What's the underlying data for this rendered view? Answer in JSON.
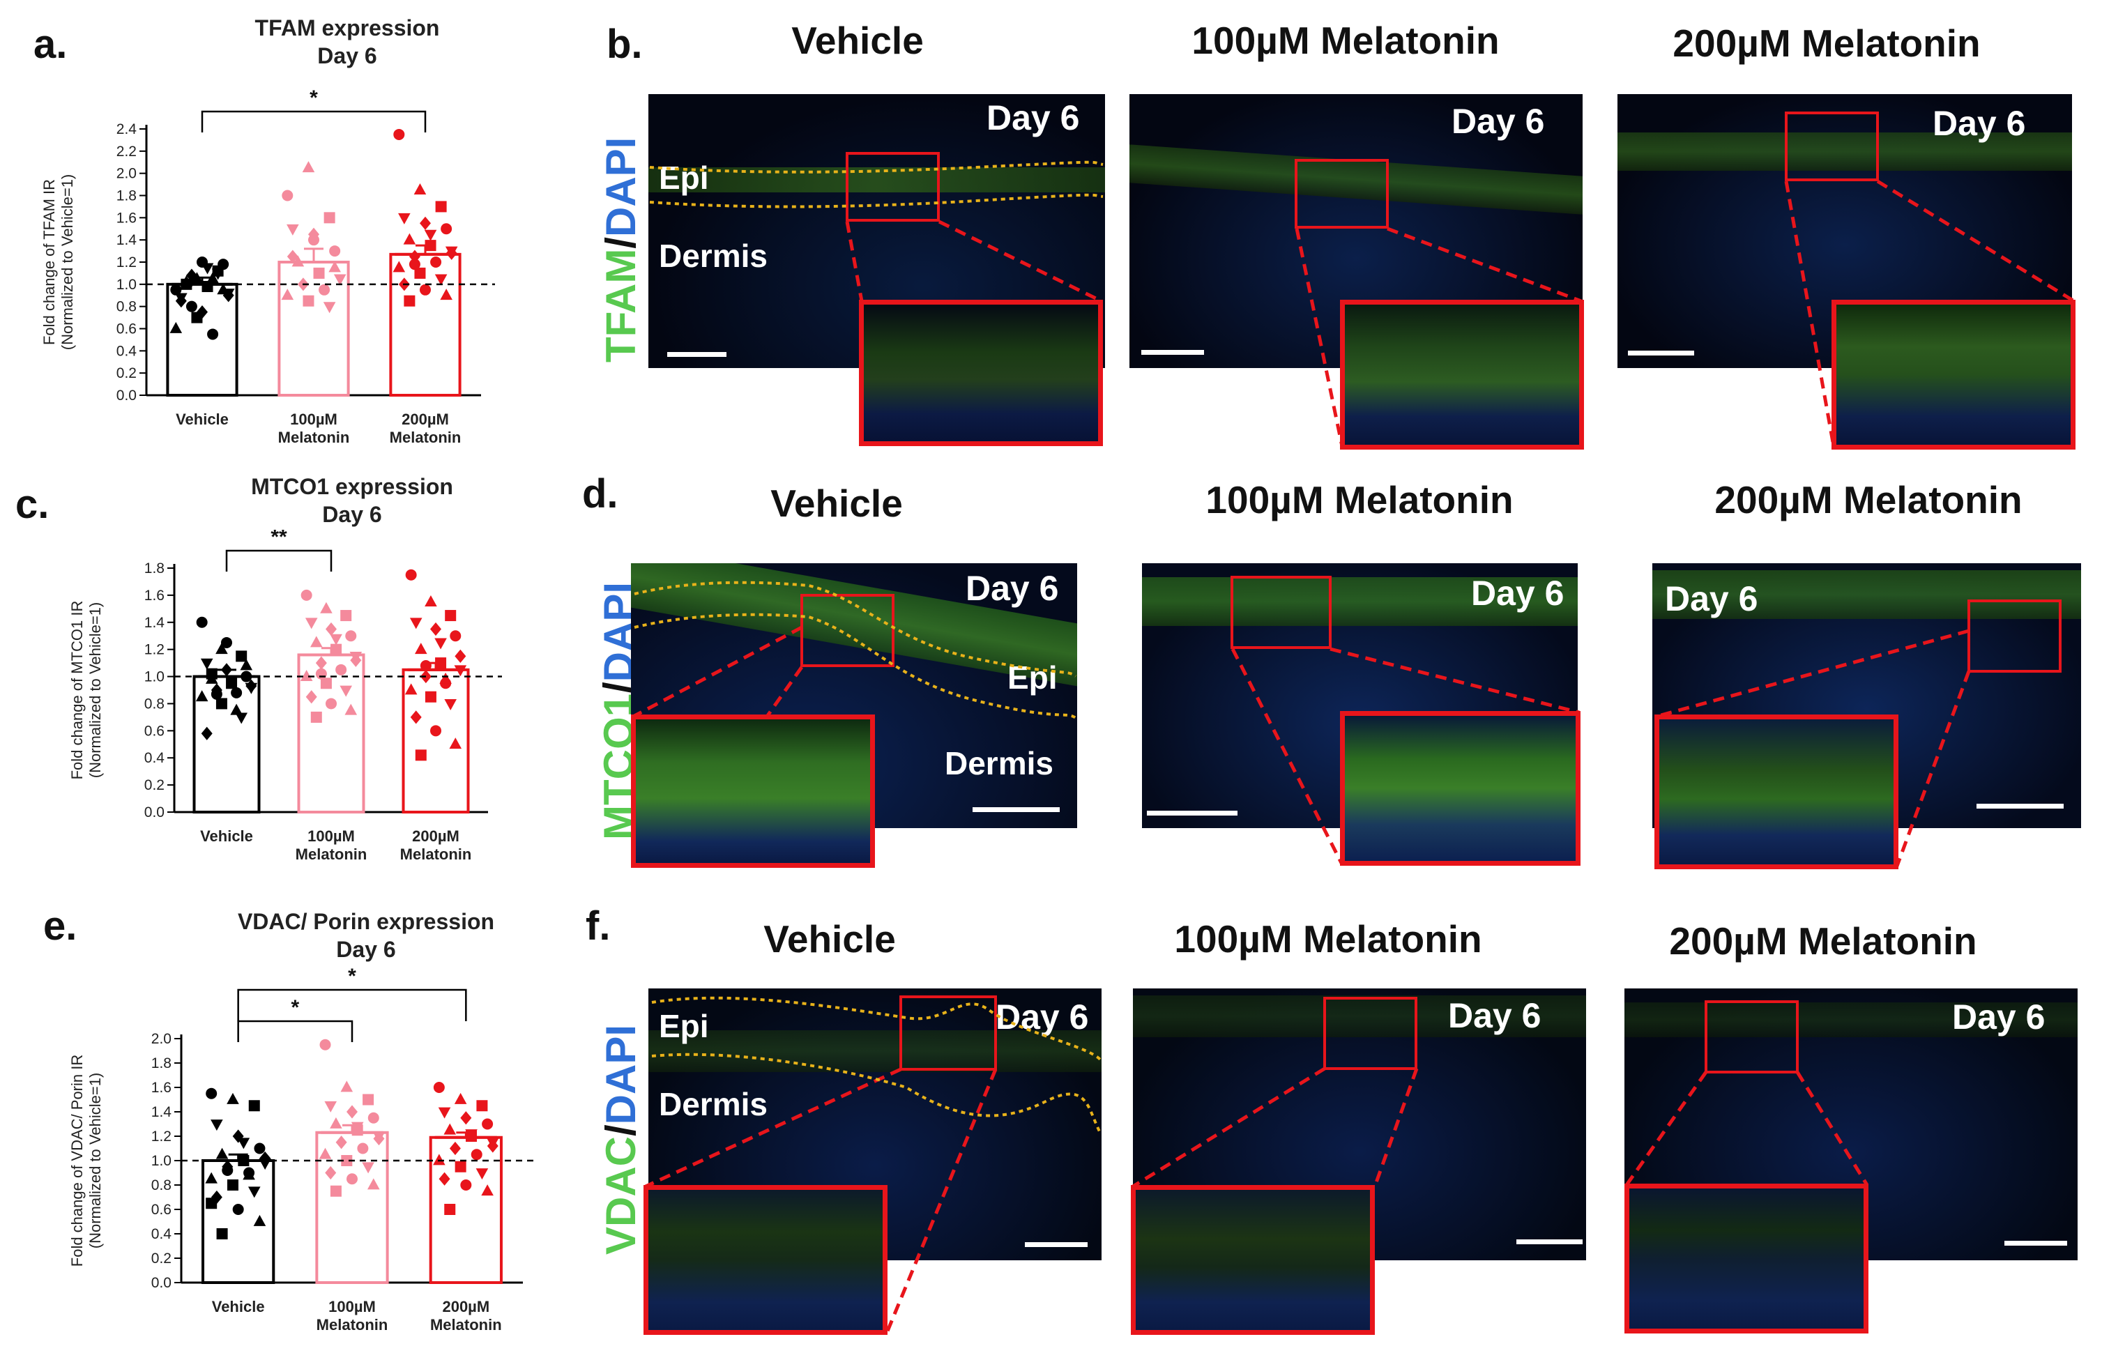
{
  "panel_labels": {
    "a": "a.",
    "b": "b.",
    "c": "c.",
    "d": "d.",
    "e": "e.",
    "f": "f."
  },
  "colors": {
    "vehicle": "#000000",
    "mel100": "#f48a9c",
    "mel200": "#e8151b",
    "box": "#e8151b",
    "green": "#58c94f",
    "blue": "#2f6fd6"
  },
  "chart_data": [
    {
      "type": "bar",
      "id": "a",
      "title": "TFAM expression",
      "subtitle": "Day 6",
      "ylabel_line1": "Fold change of TFAM IR",
      "ylabel_line2": "(Normalized to Vehicle=1)",
      "ylim": [
        0,
        2.4
      ],
      "yticks": [
        0.0,
        0.2,
        0.4,
        0.6,
        0.8,
        1.0,
        1.2,
        1.4,
        1.6,
        1.8,
        2.0,
        2.2,
        2.4
      ],
      "categories": [
        [
          "Vehicle"
        ],
        [
          "100µM",
          "Melatonin"
        ],
        [
          "200µM",
          "Melatonin"
        ]
      ],
      "values": [
        1.0,
        1.2,
        1.27
      ],
      "errors": [
        0.06,
        0.12,
        0.08
      ],
      "ref_line": 1.0,
      "points": [
        [
          0.95,
          1.05,
          1.12,
          0.88,
          0.75,
          1.18,
          1.02,
          0.98,
          0.92,
          1.08,
          0.55,
          0.6,
          0.7,
          1.1,
          0.85,
          1.2,
          0.95,
          1.0,
          1.15,
          0.9,
          0.8,
          1.05
        ],
        [
          1.8,
          2.05,
          1.6,
          1.5,
          1.45,
          1.3,
          1.2,
          1.1,
          1.05,
          1.0,
          0.95,
          0.9,
          0.85,
          0.8,
          1.25,
          1.4,
          1.15
        ],
        [
          2.35,
          1.85,
          1.7,
          1.6,
          1.55,
          1.5,
          1.4,
          1.35,
          1.3,
          1.25,
          1.2,
          1.15,
          1.1,
          1.05,
          1.0,
          0.95,
          0.9,
          0.85,
          1.45,
          1.28,
          1.18
        ]
      ],
      "significance": [
        {
          "from": 0,
          "to": 2,
          "label": "*",
          "level": 0
        }
      ]
    },
    {
      "type": "bar",
      "id": "c",
      "title": "MTCO1 expression",
      "subtitle": "Day 6",
      "ylabel_line1": "Fold change of MTCO1 IR",
      "ylabel_line2": "(Normalized to Vehicle=1)",
      "ylim": [
        0,
        1.8
      ],
      "yticks": [
        0.0,
        0.2,
        0.4,
        0.6,
        0.8,
        1.0,
        1.2,
        1.4,
        1.6,
        1.8
      ],
      "categories": [
        [
          "Vehicle"
        ],
        [
          "100µM",
          "Melatonin"
        ],
        [
          "200µM",
          "Melatonin"
        ]
      ],
      "values": [
        1.0,
        1.16,
        1.05
      ],
      "errors": [
        0.05,
        0.05,
        0.05
      ],
      "ref_line": 1.0,
      "points": [
        [
          1.4,
          1.2,
          1.15,
          1.1,
          1.05,
          1.0,
          0.98,
          0.95,
          0.92,
          0.9,
          0.88,
          0.85,
          0.8,
          0.7,
          0.58,
          1.25,
          1.08,
          1.02,
          0.97,
          0.93,
          0.87,
          0.75
        ],
        [
          1.6,
          1.5,
          1.45,
          1.4,
          1.35,
          1.3,
          1.25,
          1.2,
          1.15,
          1.1,
          1.05,
          1.0,
          0.95,
          0.9,
          0.85,
          0.8,
          0.75,
          0.7,
          1.28,
          1.12,
          1.02
        ],
        [
          1.75,
          1.55,
          1.45,
          1.4,
          1.35,
          1.3,
          1.2,
          1.1,
          1.05,
          1.0,
          0.95,
          0.9,
          0.85,
          0.8,
          0.7,
          0.6,
          0.5,
          0.42,
          1.25,
          1.15,
          1.08,
          0.98
        ]
      ],
      "significance": [
        {
          "from": 0,
          "to": 1,
          "label": "**",
          "level": 0
        }
      ]
    },
    {
      "type": "bar",
      "id": "e",
      "title": "VDAC/ Porin expression",
      "subtitle": "Day 6",
      "ylabel_line1": "Fold change of VDAC/ Porin IR",
      "ylabel_line2": "(Normalized to Vehicle=1)",
      "ylim": [
        0,
        2.0
      ],
      "yticks": [
        0.0,
        0.2,
        0.4,
        0.6,
        0.8,
        1.0,
        1.2,
        1.4,
        1.6,
        1.8,
        2.0
      ],
      "categories": [
        [
          "Vehicle"
        ],
        [
          "100µM",
          "Melatonin"
        ],
        [
          "200µM",
          "Melatonin"
        ]
      ],
      "values": [
        1.0,
        1.23,
        1.19
      ],
      "errors": [
        0.05,
        0.06,
        0.04
      ],
      "ref_line": 1.0,
      "points": [
        [
          1.55,
          1.5,
          1.45,
          1.3,
          1.2,
          1.1,
          1.05,
          1.0,
          0.98,
          0.95,
          0.9,
          0.85,
          0.8,
          0.75,
          0.7,
          0.6,
          0.5,
          0.4,
          1.15,
          1.02,
          0.92,
          0.88,
          0.65
        ],
        [
          1.95,
          1.6,
          1.5,
          1.45,
          1.4,
          1.35,
          1.3,
          1.25,
          1.2,
          1.15,
          1.1,
          1.05,
          1.0,
          0.95,
          0.9,
          0.85,
          0.8,
          0.75,
          1.28,
          1.18
        ],
        [
          1.6,
          1.5,
          1.45,
          1.4,
          1.35,
          1.3,
          1.25,
          1.2,
          1.15,
          1.1,
          1.05,
          1.0,
          0.95,
          0.9,
          0.85,
          0.8,
          0.75,
          0.6,
          1.22,
          1.12
        ]
      ],
      "significance": [
        {
          "from": 0,
          "to": 1,
          "label": "*",
          "level": 0
        },
        {
          "from": 0,
          "to": 2,
          "label": "*",
          "level": 1
        }
      ]
    }
  ],
  "panel_b": {
    "stain_first": "TFAM",
    "stain_sep": "/",
    "stain_second": "DAPI",
    "columns": [
      "Vehicle",
      "100µM Melatonin",
      "200µM Melatonin"
    ],
    "day": "Day 6",
    "epi": "Epi",
    "dermis": "Dermis"
  },
  "panel_d": {
    "stain_first": "MTCO1",
    "stain_sep": "/",
    "stain_second": "DAPI",
    "columns": [
      "Vehicle",
      "100µM Melatonin",
      "200µM Melatonin"
    ],
    "day": "Day 6",
    "epi": "Epi",
    "dermis": "Dermis"
  },
  "panel_f": {
    "stain_first": "VDAC",
    "stain_sep": "/",
    "stain_second": "DAPI",
    "columns": [
      "Vehicle",
      "100µM Melatonin",
      "200µM Melatonin"
    ],
    "day": "Day 6",
    "epi": "Epi",
    "dermis": "Dermis"
  }
}
